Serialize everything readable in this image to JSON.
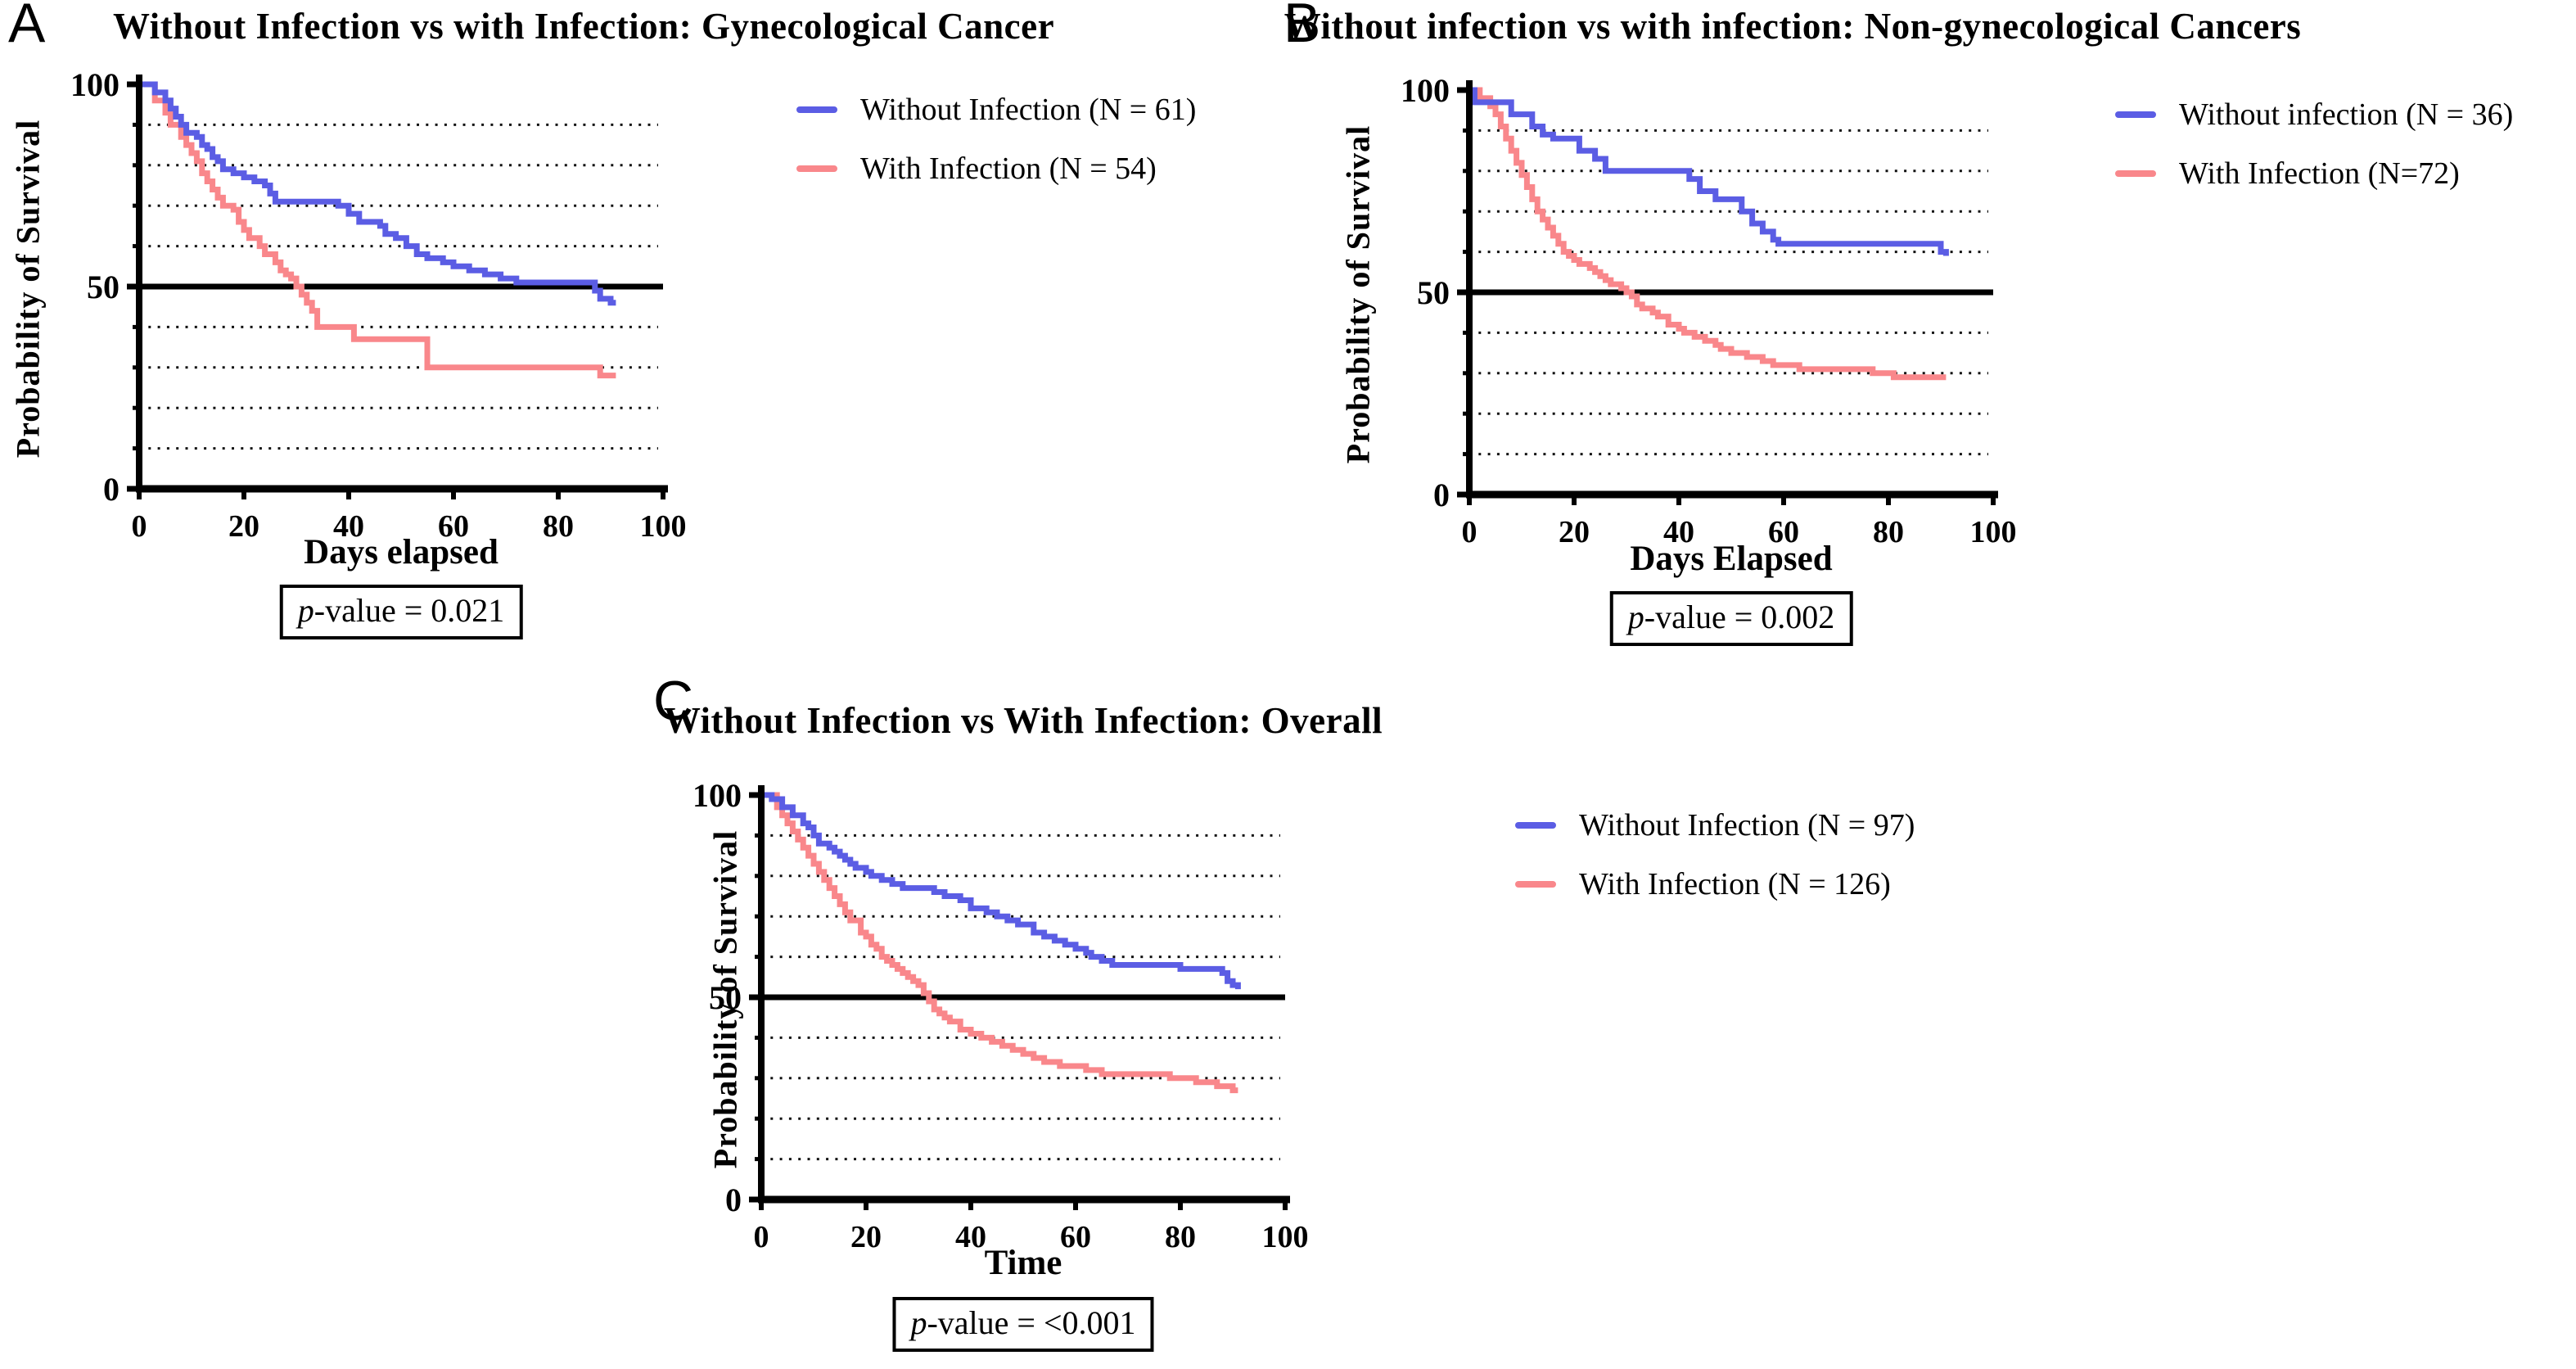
{
  "chart_data": [
    {
      "type": "line",
      "subtype": "kaplan-meier-step",
      "panel_letter": "A",
      "title": "Without Infection vs with Infection: Gynecological Cancer",
      "xlabel": "Days elapsed",
      "ylabel": "Probability of Survival",
      "pvalue": "p-value = 0.021",
      "pvalue_p": "p",
      "pvalue_tail": "-value = 0.021",
      "xlim": [
        0,
        100
      ],
      "ylim": [
        0,
        100
      ],
      "xticks": [
        0,
        20,
        40,
        60,
        80,
        100
      ],
      "yticks": [
        0,
        50,
        100
      ],
      "gridlines_dotted": [
        10,
        20,
        30,
        40,
        60,
        70,
        80,
        90
      ],
      "reference_line": 50,
      "grid": "horizontal-dotted",
      "legend_position": "right-top",
      "series": [
        {
          "name": "Without Infection (N = 61)",
          "color": "#5b5de4",
          "points": [
            [
              0,
              100
            ],
            [
              3,
              98
            ],
            [
              5,
              96
            ],
            [
              6,
              94
            ],
            [
              7,
              92
            ],
            [
              8,
              90
            ],
            [
              9,
              88
            ],
            [
              11,
              87
            ],
            [
              12,
              85
            ],
            [
              13,
              84
            ],
            [
              14,
              82
            ],
            [
              15,
              81
            ],
            [
              16,
              79
            ],
            [
              18,
              78
            ],
            [
              20,
              77
            ],
            [
              22,
              76
            ],
            [
              24,
              75
            ],
            [
              25,
              73
            ],
            [
              26,
              71
            ],
            [
              38,
              70
            ],
            [
              40,
              68
            ],
            [
              42,
              66
            ],
            [
              46,
              65
            ],
            [
              47,
              63
            ],
            [
              49,
              62
            ],
            [
              51,
              60
            ],
            [
              53,
              58
            ],
            [
              55,
              57
            ],
            [
              58,
              56
            ],
            [
              60,
              55
            ],
            [
              63,
              54
            ],
            [
              66,
              53
            ],
            [
              69,
              52
            ],
            [
              72,
              51
            ],
            [
              87,
              49
            ],
            [
              88,
              47
            ],
            [
              90,
              46
            ],
            [
              91,
              46
            ]
          ]
        },
        {
          "name": "With Infection (N = 54)",
          "color": "#f9878b",
          "points": [
            [
              0,
              100
            ],
            [
              3,
              96
            ],
            [
              5,
              93
            ],
            [
              6,
              90
            ],
            [
              8,
              87
            ],
            [
              9,
              85
            ],
            [
              10,
              83
            ],
            [
              11,
              81
            ],
            [
              12,
              78
            ],
            [
              13,
              76
            ],
            [
              14,
              74
            ],
            [
              15,
              72
            ],
            [
              16,
              70
            ],
            [
              18,
              69
            ],
            [
              19,
              66
            ],
            [
              20,
              64
            ],
            [
              21,
              62
            ],
            [
              23,
              60
            ],
            [
              24,
              58
            ],
            [
              26,
              56
            ],
            [
              27,
              54
            ],
            [
              28,
              53
            ],
            [
              29,
              52
            ],
            [
              30,
              50
            ],
            [
              31,
              48
            ],
            [
              32,
              46
            ],
            [
              33,
              44
            ],
            [
              34,
              40
            ],
            [
              41,
              37
            ],
            [
              55,
              30
            ],
            [
              88,
              28
            ],
            [
              91,
              28
            ]
          ]
        }
      ]
    },
    {
      "type": "line",
      "subtype": "kaplan-meier-step",
      "panel_letter": "B",
      "title": "Without infection vs with infection: Non-gynecological Cancers",
      "xlabel": "Days Elapsed",
      "ylabel": "Probability of Survival",
      "pvalue": "p-value = 0.002",
      "pvalue_p": "p",
      "pvalue_tail": "-value = 0.002",
      "xlim": [
        0,
        100
      ],
      "ylim": [
        0,
        100
      ],
      "xticks": [
        0,
        20,
        40,
        60,
        80,
        100
      ],
      "yticks": [
        0,
        50,
        100
      ],
      "gridlines_dotted": [
        10,
        20,
        30,
        40,
        60,
        70,
        80,
        90
      ],
      "reference_line": 50,
      "grid": "horizontal-dotted",
      "legend_position": "right-top",
      "series": [
        {
          "name": "Without infection (N = 36)",
          "color": "#5b5de4",
          "points": [
            [
              0,
              100
            ],
            [
              1,
              97
            ],
            [
              8,
              94
            ],
            [
              12,
              91
            ],
            [
              14,
              89
            ],
            [
              16,
              88
            ],
            [
              21,
              85
            ],
            [
              24,
              83
            ],
            [
              26,
              80
            ],
            [
              42,
              78
            ],
            [
              44,
              75
            ],
            [
              47,
              73
            ],
            [
              52,
              70
            ],
            [
              54,
              67
            ],
            [
              56,
              65
            ],
            [
              58,
              63
            ],
            [
              59,
              62
            ],
            [
              90,
              60
            ],
            [
              91,
              59
            ]
          ]
        },
        {
          "name": "With Infection (N=72)",
          "color": "#f9878b",
          "points": [
            [
              0,
              100
            ],
            [
              2,
              98
            ],
            [
              4,
              96
            ],
            [
              5,
              94
            ],
            [
              6,
              91
            ],
            [
              7,
              88
            ],
            [
              8,
              85
            ],
            [
              9,
              82
            ],
            [
              10,
              79
            ],
            [
              11,
              76
            ],
            [
              12,
              73
            ],
            [
              13,
              70
            ],
            [
              14,
              68
            ],
            [
              15,
              66
            ],
            [
              16,
              64
            ],
            [
              17,
              62
            ],
            [
              18,
              60
            ],
            [
              19,
              59
            ],
            [
              20,
              58
            ],
            [
              21,
              57
            ],
            [
              23,
              56
            ],
            [
              24,
              55
            ],
            [
              25,
              54
            ],
            [
              26,
              53
            ],
            [
              27,
              52
            ],
            [
              29,
              51
            ],
            [
              30,
              50
            ],
            [
              31,
              49
            ],
            [
              32,
              47
            ],
            [
              33,
              46
            ],
            [
              35,
              45
            ],
            [
              36,
              44
            ],
            [
              38,
              42
            ],
            [
              40,
              41
            ],
            [
              41,
              40
            ],
            [
              43,
              39
            ],
            [
              45,
              38
            ],
            [
              47,
              37
            ],
            [
              48,
              36
            ],
            [
              50,
              35
            ],
            [
              53,
              34
            ],
            [
              56,
              33
            ],
            [
              58,
              32
            ],
            [
              63,
              31
            ],
            [
              77,
              30
            ],
            [
              81,
              29
            ],
            [
              91,
              29
            ]
          ]
        }
      ]
    },
    {
      "type": "line",
      "subtype": "kaplan-meier-step",
      "panel_letter": "C",
      "title": "Without Infection vs With Infection: Overall",
      "xlabel": "Time",
      "ylabel": "Probability of Survival",
      "pvalue": "p-value = <0.001",
      "pvalue_p": "p",
      "pvalue_tail": "-value = <0.001",
      "xlim": [
        0,
        100
      ],
      "ylim": [
        0,
        100
      ],
      "xticks": [
        0,
        20,
        40,
        60,
        80,
        100
      ],
      "yticks": [
        0,
        50,
        100
      ],
      "gridlines_dotted": [
        10,
        20,
        30,
        40,
        60,
        70,
        80,
        90
      ],
      "reference_line": 50,
      "grid": "horizontal-dotted",
      "legend_position": "right-top",
      "series": [
        {
          "name": "Without Infection (N = 97)",
          "color": "#5b5de4",
          "points": [
            [
              0,
              100
            ],
            [
              2,
              99
            ],
            [
              4,
              97
            ],
            [
              6,
              95
            ],
            [
              8,
              93
            ],
            [
              9,
              92
            ],
            [
              10,
              90
            ],
            [
              11,
              88
            ],
            [
              13,
              87
            ],
            [
              14,
              86
            ],
            [
              15,
              85
            ],
            [
              16,
              84
            ],
            [
              17,
              83
            ],
            [
              18,
              82
            ],
            [
              20,
              81
            ],
            [
              21,
              80
            ],
            [
              23,
              79
            ],
            [
              25,
              78
            ],
            [
              27,
              77
            ],
            [
              33,
              76
            ],
            [
              35,
              75
            ],
            [
              38,
              74
            ],
            [
              40,
              72
            ],
            [
              43,
              71
            ],
            [
              45,
              70
            ],
            [
              47,
              69
            ],
            [
              49,
              68
            ],
            [
              52,
              66
            ],
            [
              54,
              65
            ],
            [
              56,
              64
            ],
            [
              58,
              63
            ],
            [
              60,
              62
            ],
            [
              62,
              61
            ],
            [
              63,
              60
            ],
            [
              65,
              59
            ],
            [
              67,
              58
            ],
            [
              80,
              57
            ],
            [
              88,
              56
            ],
            [
              89,
              54
            ],
            [
              90,
              53
            ],
            [
              91,
              52
            ]
          ]
        },
        {
          "name": "With Infection (N = 126)",
          "color": "#f9878b",
          "points": [
            [
              0,
              100
            ],
            [
              3,
              97
            ],
            [
              4,
              95
            ],
            [
              5,
              93
            ],
            [
              6,
              91
            ],
            [
              7,
              89
            ],
            [
              8,
              87
            ],
            [
              9,
              85
            ],
            [
              10,
              83
            ],
            [
              11,
              81
            ],
            [
              12,
              79
            ],
            [
              13,
              77
            ],
            [
              14,
              75
            ],
            [
              15,
              73
            ],
            [
              16,
              71
            ],
            [
              17,
              69
            ],
            [
              19,
              66
            ],
            [
              20,
              65
            ],
            [
              21,
              63
            ],
            [
              22,
              62
            ],
            [
              23,
              60
            ],
            [
              24,
              59
            ],
            [
              25,
              58
            ],
            [
              26,
              57
            ],
            [
              27,
              56
            ],
            [
              28,
              55
            ],
            [
              29,
              54
            ],
            [
              30,
              53
            ],
            [
              31,
              51
            ],
            [
              32,
              49
            ],
            [
              33,
              47
            ],
            [
              34,
              46
            ],
            [
              35,
              45
            ],
            [
              36,
              44
            ],
            [
              38,
              42
            ],
            [
              40,
              41
            ],
            [
              42,
              40
            ],
            [
              44,
              39
            ],
            [
              46,
              38
            ],
            [
              48,
              37
            ],
            [
              50,
              36
            ],
            [
              52,
              35
            ],
            [
              54,
              34
            ],
            [
              57,
              33
            ],
            [
              62,
              32
            ],
            [
              65,
              31
            ],
            [
              78,
              30
            ],
            [
              83,
              29
            ],
            [
              87,
              28
            ],
            [
              90,
              27
            ],
            [
              91,
              27
            ]
          ]
        }
      ]
    }
  ],
  "figure": {
    "background": "#ffffff",
    "line_color_without_infection": "#5b5de4",
    "line_color_with_infection": "#f9878b"
  }
}
